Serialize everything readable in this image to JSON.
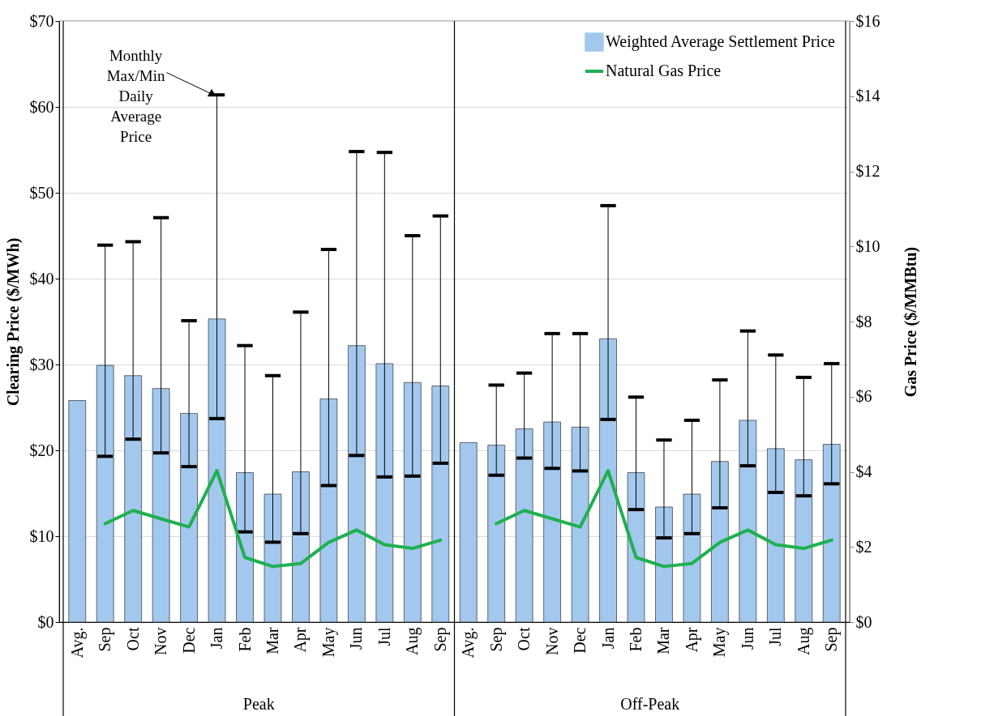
{
  "chart_data": {
    "type": "bar",
    "categories": [
      "Avg.",
      "Sep",
      "Oct",
      "Nov",
      "Dec",
      "Jan",
      "Feb",
      "Mar",
      "Apr",
      "May",
      "Jun",
      "Jul",
      "Aug",
      "Sep",
      "Avg.",
      "Sep",
      "Oct",
      "Nov",
      "Dec",
      "Jan",
      "Feb",
      "Mar",
      "Apr",
      "May",
      "Jun",
      "Jul",
      "Aug",
      "Sep"
    ],
    "series": [
      {
        "name": "Weighted Average Settlement Price",
        "color": "#a3c8ee",
        "values": [
          25.8,
          29.9,
          28.7,
          27.2,
          24.3,
          35.3,
          17.4,
          14.9,
          17.5,
          26.0,
          32.2,
          30.1,
          27.9,
          27.5,
          20.9,
          20.6,
          22.5,
          23.3,
          22.7,
          33.0,
          17.4,
          13.4,
          14.9,
          18.7,
          23.5,
          20.2,
          18.9,
          20.7
        ],
        "errors": [
          null,
          [
            19.3,
            43.9
          ],
          [
            21.3,
            44.3
          ],
          [
            19.7,
            47.1
          ],
          [
            18.1,
            35.1
          ],
          [
            23.7,
            61.4
          ],
          [
            10.5,
            32.2
          ],
          [
            9.3,
            28.7
          ],
          [
            10.3,
            36.1
          ],
          [
            15.9,
            43.4
          ],
          [
            19.4,
            54.8
          ],
          [
            16.9,
            54.7
          ],
          [
            17.0,
            45.0
          ],
          [
            18.5,
            47.3
          ],
          null,
          [
            17.1,
            27.6
          ],
          [
            19.1,
            29.0
          ],
          [
            17.9,
            33.6
          ],
          [
            17.6,
            33.6
          ],
          [
            23.6,
            48.5
          ],
          [
            13.1,
            26.2
          ],
          [
            9.8,
            21.2
          ],
          [
            10.3,
            23.5
          ],
          [
            13.3,
            28.2
          ],
          [
            18.2,
            33.9
          ],
          [
            15.1,
            31.1
          ],
          [
            14.7,
            28.5
          ],
          [
            16.1,
            30.1
          ]
        ]
      },
      {
        "name": "Natural Gas Price",
        "type": "line",
        "axis": "y2",
        "color": "#1fb050",
        "values": [
          null,
          2.62,
          2.97,
          2.75,
          2.53,
          4.03,
          1.72,
          1.48,
          1.56,
          2.12,
          2.45,
          2.06,
          1.96,
          2.18,
          null,
          2.62,
          2.97,
          2.75,
          2.53,
          4.03,
          1.72,
          1.48,
          1.56,
          2.12,
          2.45,
          2.06,
          1.96,
          2.18
        ]
      }
    ],
    "ylabel": "Clearing Price ($/MWh)",
    "y2label": "Gas Price ($/MMBtu)",
    "ylim": [
      0,
      70
    ],
    "yticks": [
      {
        "value": 0,
        "label": "$0"
      },
      {
        "value": 10,
        "label": "$10"
      },
      {
        "value": 20,
        "label": "$20"
      },
      {
        "value": 30,
        "label": "$30"
      },
      {
        "value": 40,
        "label": "$40"
      },
      {
        "value": 50,
        "label": "$50"
      },
      {
        "value": 60,
        "label": "$60"
      },
      {
        "value": 70,
        "label": "$70"
      }
    ],
    "y2lim": [
      0,
      16
    ],
    "y2ticks": [
      {
        "value": 0,
        "label": "$0"
      },
      {
        "value": 2,
        "label": "$2"
      },
      {
        "value": 4,
        "label": "$4"
      },
      {
        "value": 6,
        "label": "$6"
      },
      {
        "value": 8,
        "label": "$8"
      },
      {
        "value": 10,
        "label": "$10"
      },
      {
        "value": 12,
        "label": "$12"
      },
      {
        "value": 14,
        "label": "$14"
      },
      {
        "value": 16,
        "label": "$16"
      }
    ],
    "annotations": [
      {
        "text": "Monthly Max/Min Daily Average Price",
        "x": "Jan",
        "y": 61.4
      },
      "Peak",
      "Off-Peak"
    ],
    "grid": "y",
    "legend": "top right",
    "marker": "none",
    "line_style": "solid"
  }
}
